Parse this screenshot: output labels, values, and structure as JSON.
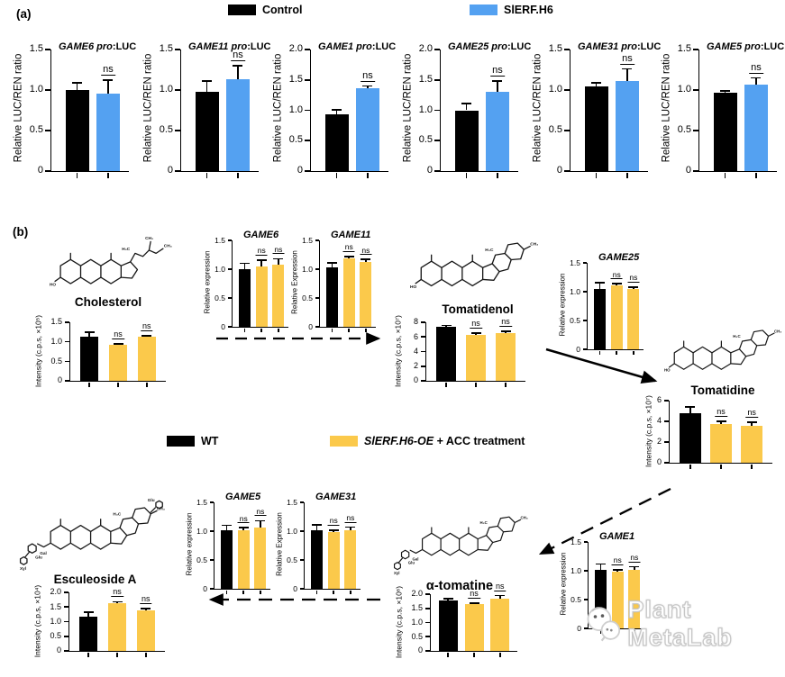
{
  "colors": {
    "black": "#000000",
    "blue": "#54A1F1",
    "yellow": "#FBC94B"
  },
  "panel_a": {
    "label": "(a)",
    "legend": [
      {
        "label": "Control",
        "color_key": "black"
      },
      {
        "label": "SlERF.H6",
        "color_key": "blue"
      }
    ]
  },
  "panel_b": {
    "label": "(b)",
    "legend": [
      {
        "label": "WT",
        "color_key": "black"
      },
      {
        "label_italic": "SlERF.H6-OE",
        "label_rest": " + ACC treatment",
        "color_key": "yellow"
      }
    ],
    "metabolites": [
      {
        "name": "Cholesterol"
      },
      {
        "name": "Tomatidenol"
      },
      {
        "name": "Tomatidine"
      },
      {
        "name": "α-tomatine"
      },
      {
        "name": "Esculeoside A"
      }
    ],
    "structure_labels": {
      "ho": "HO",
      "h3c": "H₃C",
      "ch3": "CH₃",
      "glu": "Glu",
      "gal": "Gal",
      "xyl": "Xyl"
    }
  },
  "watermark": {
    "text": "Plant MetaLab"
  },
  "chart_data": [
    {
      "id": "a-game6",
      "type": "bar",
      "title_italic": "GAME6 pro",
      "title_rest": ":LUC",
      "ylabel": "Relative LUC/REN ratio",
      "ylim": [
        0,
        1.5
      ],
      "yticks": [
        0,
        0.5,
        1,
        1.5
      ],
      "ytick_labels": [
        "0",
        "0.5",
        "1.0",
        "1.5"
      ],
      "categories": [
        "Control",
        "SlERF.H6"
      ],
      "values": [
        1.0,
        0.96
      ],
      "errors": [
        0.09,
        0.16
      ],
      "sig": [
        "",
        "ns"
      ]
    },
    {
      "id": "a-game11",
      "type": "bar",
      "title_italic": "GAME11 pro",
      "title_rest": ":LUC",
      "ylabel": "Relative LUC/REN ratio",
      "ylim": [
        0,
        1.5
      ],
      "yticks": [
        0,
        0.5,
        1,
        1.5
      ],
      "ytick_labels": [
        "0",
        "0.5",
        "1.0",
        "1.5"
      ],
      "categories": [
        "Control",
        "SlERF.H6"
      ],
      "values": [
        0.98,
        1.13
      ],
      "errors": [
        0.13,
        0.17
      ],
      "sig": [
        "",
        "ns"
      ]
    },
    {
      "id": "a-game1",
      "type": "bar",
      "title_italic": "GAME1 pro",
      "title_rest": ":LUC",
      "ylabel": "Relative LUC/REN ratio",
      "ylim": [
        0,
        2
      ],
      "yticks": [
        0,
        0.5,
        1,
        1.5,
        2
      ],
      "ytick_labels": [
        "0",
        "0.5",
        "1.0",
        "1.5",
        "2.0"
      ],
      "categories": [
        "Control",
        "SlERF.H6"
      ],
      "values": [
        0.93,
        1.37
      ],
      "errors": [
        0.08,
        0.03
      ],
      "sig": [
        "",
        "ns"
      ]
    },
    {
      "id": "a-game25",
      "type": "bar",
      "title_italic": "GAME25 pro",
      "title_rest": ":LUC",
      "ylabel": "Relative LUC/REN ratio",
      "ylim": [
        0,
        2
      ],
      "yticks": [
        0,
        0.5,
        1,
        1.5,
        2
      ],
      "ytick_labels": [
        "0",
        "0.5",
        "1.0",
        "1.5",
        "2.0"
      ],
      "categories": [
        "Control",
        "SlERF.H6"
      ],
      "values": [
        1.0,
        1.31
      ],
      "errors": [
        0.11,
        0.17
      ],
      "sig": [
        "",
        "ns"
      ]
    },
    {
      "id": "a-game31",
      "type": "bar",
      "title_italic": "GAME31 pro",
      "title_rest": ":LUC",
      "ylabel": "Relative LUC/REN ratio",
      "ylim": [
        0,
        1.5
      ],
      "yticks": [
        0,
        0.5,
        1,
        1.5
      ],
      "ytick_labels": [
        "0",
        "0.5",
        "1.0",
        "1.5"
      ],
      "categories": [
        "Control",
        "SlERF.H6"
      ],
      "values": [
        1.04,
        1.11
      ],
      "errors": [
        0.05,
        0.15
      ],
      "sig": [
        "",
        "ns"
      ]
    },
    {
      "id": "a-game5",
      "type": "bar",
      "title_italic": "GAME5 pro",
      "title_rest": ":LUC",
      "ylabel": "Relative LUC/REN ratio",
      "ylim": [
        0,
        1.5
      ],
      "yticks": [
        0,
        0.5,
        1,
        1.5
      ],
      "ytick_labels": [
        "0",
        "0.5",
        "1.0",
        "1.5"
      ],
      "categories": [
        "Control",
        "SlERF.H6"
      ],
      "values": [
        0.97,
        1.07
      ],
      "errors": [
        0.02,
        0.08
      ],
      "sig": [
        "",
        "ns"
      ]
    },
    {
      "id": "b-game6",
      "type": "bar",
      "title_italic": "GAME6",
      "title_rest": "",
      "ylabel": "Relative expression",
      "ylim": [
        0,
        1.5
      ],
      "yticks": [
        0,
        0.5,
        1,
        1.5
      ],
      "ytick_labels": [
        "0",
        "0.5",
        "1.0",
        "1.5"
      ],
      "categories": [
        "WT",
        "SlERF.H6-OE + ACC treatment",
        "SlERF.H6-OE + ACC treatment"
      ],
      "values": [
        1.0,
        1.04,
        1.08
      ],
      "errors": [
        0.1,
        0.12,
        0.1
      ],
      "sig": [
        "",
        "ns",
        "ns"
      ]
    },
    {
      "id": "b-game11",
      "type": "bar",
      "title_italic": "GAME11",
      "title_rest": "",
      "ylabel": "Relative Expression",
      "ylim": [
        0,
        1.5
      ],
      "yticks": [
        0,
        0.5,
        1,
        1.5
      ],
      "ytick_labels": [
        "0",
        "0.5",
        "1.0",
        "1.5"
      ],
      "categories": [
        "WT",
        "SlERF.H6-OE + ACC treatment",
        "SlERF.H6-OE + ACC treatment"
      ],
      "values": [
        1.03,
        1.18,
        1.13
      ],
      "errors": [
        0.08,
        0.04,
        0.04
      ],
      "sig": [
        "",
        "ns",
        "ns"
      ]
    },
    {
      "id": "b-game25",
      "type": "bar",
      "title_italic": "GAME25",
      "title_rest": "",
      "ylabel": "Relative expression",
      "ylim": [
        0,
        1.5
      ],
      "yticks": [
        0,
        0.5,
        1,
        1.5
      ],
      "ytick_labels": [
        "0",
        "0.5",
        "1.0",
        "1.5"
      ],
      "categories": [
        "WT",
        "SlERF.H6-OE + ACC treatment",
        "SlERF.H6-OE + ACC treatment"
      ],
      "values": [
        1.04,
        1.11,
        1.04
      ],
      "errors": [
        0.12,
        0.03,
        0.04
      ],
      "sig": [
        "",
        "ns",
        "ns"
      ]
    },
    {
      "id": "b-game5",
      "type": "bar",
      "title_italic": "GAME5",
      "title_rest": "",
      "ylabel": "Relative expression",
      "ylim": [
        0,
        1.5
      ],
      "yticks": [
        0,
        0.5,
        1,
        1.5
      ],
      "ytick_labels": [
        "0",
        "0.5",
        "1.0",
        "1.5"
      ],
      "categories": [
        "WT",
        "SlERF.H6-OE + ACC treatment",
        "SlERF.H6-OE + ACC treatment"
      ],
      "values": [
        1.02,
        1.02,
        1.07
      ],
      "errors": [
        0.08,
        0.04,
        0.11
      ],
      "sig": [
        "",
        "ns",
        "ns"
      ]
    },
    {
      "id": "b-game31",
      "type": "bar",
      "title_italic": "GAME31",
      "title_rest": "",
      "ylabel": "Relative Expression",
      "ylim": [
        0,
        1.5
      ],
      "yticks": [
        0,
        0.5,
        1,
        1.5
      ],
      "ytick_labels": [
        "0",
        "0.5",
        "1.0",
        "1.5"
      ],
      "categories": [
        "WT",
        "SlERF.H6-OE + ACC treatment",
        "SlERF.H6-OE + ACC treatment"
      ],
      "values": [
        1.02,
        0.98,
        1.02
      ],
      "errors": [
        0.09,
        0.04,
        0.05
      ],
      "sig": [
        "",
        "ns",
        "ns"
      ]
    },
    {
      "id": "b-game1",
      "type": "bar",
      "title_italic": "GAME1",
      "title_rest": "",
      "ylabel": "Relative expression",
      "ylim": [
        0,
        1.5
      ],
      "yticks": [
        0,
        0.5,
        1,
        1.5
      ],
      "ytick_labels": [
        "0",
        "0.5",
        "1.0",
        "1.5"
      ],
      "categories": [
        "WT",
        "SlERF.H6-OE + ACC treatment",
        "SlERF.H6-OE + ACC treatment"
      ],
      "values": [
        1.02,
        0.98,
        1.02
      ],
      "errors": [
        0.1,
        0.04,
        0.05
      ],
      "sig": [
        "",
        "ns",
        "ns"
      ]
    },
    {
      "id": "b-cholesterol",
      "type": "bar",
      "title_italic": "",
      "title_rest": "",
      "ylabel": "Intensity (c.p.s, ×10⁵)",
      "ylim": [
        0,
        1.5
      ],
      "yticks": [
        0,
        0.5,
        1,
        1.5
      ],
      "ytick_labels": [
        "0",
        "0.5",
        "1.0",
        "1.5"
      ],
      "categories": [
        "WT",
        "SlERF.H6-OE + ACC treatment",
        "SlERF.H6-OE + ACC treatment"
      ],
      "values": [
        1.12,
        0.93,
        1.13
      ],
      "errors": [
        0.12,
        0.02,
        0.03
      ],
      "sig": [
        "",
        "ns",
        "ns"
      ]
    },
    {
      "id": "b-tomatidenol",
      "type": "bar",
      "title_italic": "",
      "title_rest": "",
      "ylabel": "Intensity (c.p.s, ×10⁷)",
      "ylim": [
        0,
        8
      ],
      "yticks": [
        0,
        2,
        4,
        6,
        8
      ],
      "ytick_labels": [
        "0",
        "2",
        "4",
        "6",
        "8"
      ],
      "categories": [
        "WT",
        "SlERF.H6-OE + ACC treatment",
        "SlERF.H6-OE + ACC treatment"
      ],
      "values": [
        7.4,
        6.3,
        6.5
      ],
      "errors": [
        0.15,
        0.25,
        0.25
      ],
      "sig": [
        "",
        "ns",
        "ns"
      ]
    },
    {
      "id": "b-tomatidine",
      "type": "bar",
      "title_italic": "",
      "title_rest": "",
      "ylabel": "Intensity (c.p.s, ×10⁷)",
      "ylim": [
        0,
        6
      ],
      "yticks": [
        0,
        2,
        4,
        6
      ],
      "ytick_labels": [
        "0",
        "2",
        "4",
        "6"
      ],
      "categories": [
        "WT",
        "SlERF.H6-OE + ACC treatment",
        "SlERF.H6-OE + ACC treatment"
      ],
      "values": [
        4.8,
        3.7,
        3.6
      ],
      "errors": [
        0.6,
        0.3,
        0.3
      ],
      "sig": [
        "",
        "ns",
        "ns"
      ]
    },
    {
      "id": "b-alpha-tomatine",
      "type": "bar",
      "title_italic": "",
      "title_rest": "",
      "ylabel": "Intensity (c.p.s, ×10⁶)",
      "ylim": [
        0,
        2
      ],
      "yticks": [
        0,
        0.5,
        1,
        1.5,
        2
      ],
      "ytick_labels": [
        "0",
        "0.5",
        "1.0",
        "1.5",
        "2.0"
      ],
      "categories": [
        "WT",
        "SlERF.H6-OE + ACC treatment",
        "SlERF.H6-OE + ACC treatment"
      ],
      "values": [
        1.79,
        1.64,
        1.85
      ],
      "errors": [
        0.06,
        0.05,
        0.1
      ],
      "sig": [
        "",
        "ns",
        "ns"
      ]
    },
    {
      "id": "b-esculeoside-a",
      "type": "bar",
      "title_italic": "",
      "title_rest": "",
      "ylabel": "Intensity (c.p.s, ×10⁴)",
      "ylim": [
        0,
        2
      ],
      "yticks": [
        0,
        0.5,
        1,
        1.5,
        2
      ],
      "ytick_labels": [
        "0",
        "0.5",
        "1.0",
        "1.5",
        "2.0"
      ],
      "categories": [
        "WT",
        "SlERF.H6-OE + ACC treatment",
        "SlERF.H6-OE + ACC treatment"
      ],
      "values": [
        1.17,
        1.64,
        1.37
      ],
      "errors": [
        0.15,
        0.04,
        0.08
      ],
      "sig": [
        "",
        "ns",
        "ns"
      ]
    }
  ]
}
